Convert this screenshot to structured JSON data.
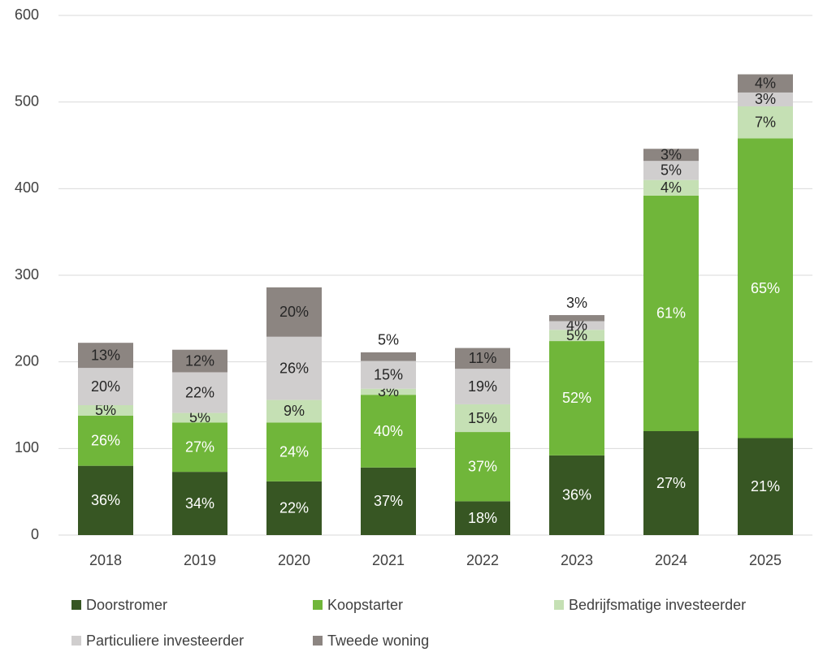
{
  "chart_data": {
    "type": "stacked_bar",
    "categories": [
      "2018",
      "2019",
      "2020",
      "2021",
      "2022",
      "2023",
      "2024",
      "2025"
    ],
    "ylim": [
      0,
      600
    ],
    "yticks": [
      0,
      100,
      200,
      300,
      400,
      500,
      600
    ],
    "grid": true,
    "legend": "bottom",
    "series": [
      {
        "name": "Doorstromer",
        "color": "#375623",
        "values": [
          80,
          73,
          62,
          78,
          39,
          92,
          120,
          112
        ],
        "value_labels": [
          "36%",
          "34%",
          "22%",
          "37%",
          "18%",
          "36%",
          "27%",
          "21%"
        ]
      },
      {
        "name": "Koopstarter",
        "color": "#70b63a",
        "values": [
          58,
          57,
          68,
          84,
          80,
          132,
          272,
          346
        ],
        "value_labels": [
          "26%",
          "27%",
          "24%",
          "40%",
          "37%",
          "52%",
          "61%",
          "65%"
        ]
      },
      {
        "name": "Bedrijfsmatige investeerder",
        "color": "#c5e0b4",
        "values": [
          12,
          11,
          26,
          7,
          32,
          13,
          18,
          37
        ],
        "value_labels": [
          "5%",
          "5%",
          "9%",
          "3%",
          "15%",
          "5%",
          "4%",
          "7%"
        ]
      },
      {
        "name": "Particuliere investeerder",
        "color": "#d0cece",
        "values": [
          43,
          47,
          73,
          32,
          41,
          10,
          22,
          16
        ],
        "value_labels": [
          "20%",
          "22%",
          "26%",
          "15%",
          "19%",
          "4%",
          "5%",
          "3%"
        ]
      },
      {
        "name": "Tweede woning",
        "color": "#8c8581",
        "values": [
          29,
          26,
          57,
          10,
          24,
          7,
          14,
          21
        ],
        "value_labels": [
          "13%",
          "12%",
          "20%",
          "5%",
          "11%",
          "3%",
          "3%",
          "4%"
        ]
      }
    ]
  }
}
